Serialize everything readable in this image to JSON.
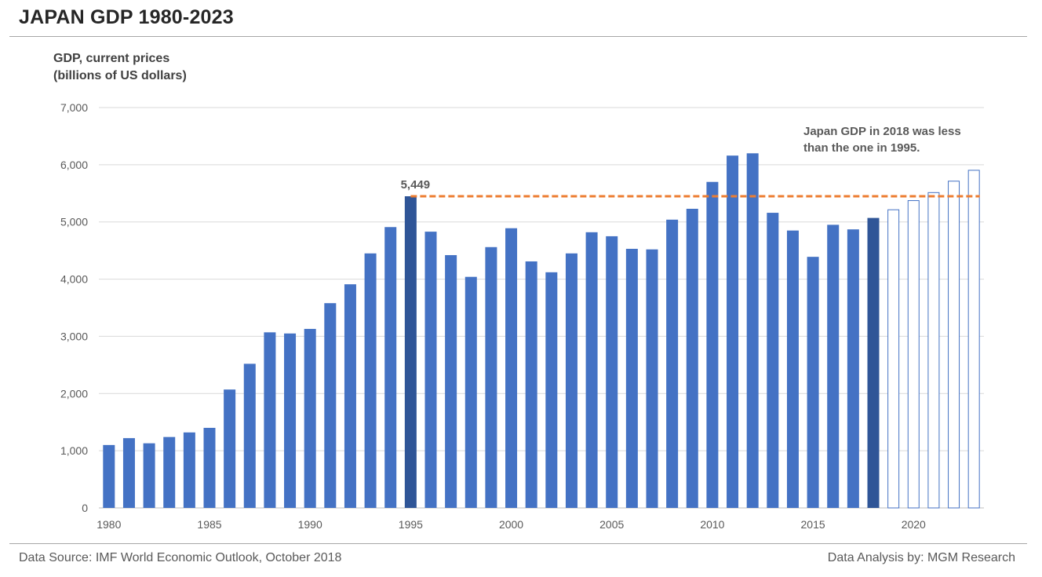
{
  "header": {
    "title": "JAPAN GDP 1980-2023"
  },
  "footer": {
    "source": "Data Source: IMF World Economic Outlook, October 2018",
    "analysis": "Data Analysis by: MGM Research"
  },
  "colors": {
    "bar": "#4472c4",
    "highlight": "#2f5597",
    "projection_stroke": "#4472c4",
    "reference_line": "#ed7d31",
    "grid": "#d9d9d9"
  },
  "chart_data": {
    "type": "bar",
    "title": "JAPAN GDP 1980-2023",
    "ylabel_lines": [
      "GDP, current prices",
      "(billions of US dollars)"
    ],
    "xlabel": "",
    "x": [
      1980,
      1981,
      1982,
      1983,
      1984,
      1985,
      1986,
      1987,
      1988,
      1989,
      1990,
      1991,
      1992,
      1993,
      1994,
      1995,
      1996,
      1997,
      1998,
      1999,
      2000,
      2001,
      2002,
      2003,
      2004,
      2005,
      2006,
      2007,
      2008,
      2009,
      2010,
      2011,
      2012,
      2013,
      2014,
      2015,
      2016,
      2017,
      2018,
      2019,
      2020,
      2021,
      2022,
      2023
    ],
    "values": [
      1100,
      1220,
      1130,
      1240,
      1320,
      1400,
      2070,
      2520,
      3070,
      3050,
      3130,
      3580,
      3910,
      4450,
      4910,
      5449,
      4830,
      4420,
      4040,
      4560,
      4890,
      4310,
      4120,
      4450,
      4820,
      4750,
      4530,
      4520,
      5040,
      5230,
      5700,
      6160,
      6200,
      5160,
      4850,
      4390,
      4950,
      4870,
      5070,
      5220,
      5380,
      5520,
      5720,
      5910
    ],
    "highlighted": [
      1995,
      2018
    ],
    "projected_from": 2019,
    "ylim": [
      0,
      7000
    ],
    "yticks": [
      0,
      1000,
      2000,
      3000,
      4000,
      5000,
      6000,
      7000
    ],
    "ytick_labels": [
      "0",
      "1,000",
      "2,000",
      "3,000",
      "4,000",
      "5,000",
      "6,000",
      "7,000"
    ],
    "xticks": [
      1980,
      1985,
      1990,
      1995,
      2000,
      2005,
      2010,
      2015,
      2020
    ],
    "xtick_labels": [
      "1980",
      "1985",
      "1990",
      "1995",
      "2000",
      "2005",
      "2010",
      "2015",
      "2020"
    ],
    "grid": true,
    "data_label": {
      "year": 1995,
      "text": "5,449"
    },
    "reference_line": {
      "value": 5449,
      "from": 1995,
      "to": 2023,
      "style": "dashed"
    },
    "annotation_lines": [
      "Japan GDP in 2018 was less",
      "than the one in 1995."
    ]
  }
}
